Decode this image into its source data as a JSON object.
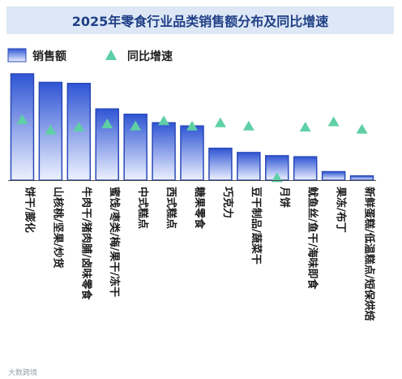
{
  "chart_data": {
    "type": "bar",
    "title": "2025年零食行业品类销售额分布及同比增速",
    "categories": [
      "饼干/膨化",
      "山核桃/坚果/炒货",
      "牛肉干/猪肉脯/卤味零食",
      "蜜饯/枣类/梅/果干/冻干",
      "中式糕点",
      "西式糕点",
      "糖果零食",
      "巧克力",
      "豆干制品/蔬菜干",
      "月饼",
      "鱿鱼丝/鱼干/海味即食",
      "果冻/布丁",
      "新鲜蛋糕/低温糕点/短保烘焙"
    ],
    "series": [
      {
        "name": "销售额",
        "type": "bar",
        "values": [
          100,
          92,
          91,
          67,
          62,
          54,
          51,
          30,
          26,
          23,
          22,
          8,
          4
        ]
      },
      {
        "name": "同比增速",
        "type": "scatter",
        "values": [
          57,
          47,
          50,
          53,
          51,
          56,
          51,
          54,
          51,
          2,
          50,
          55,
          48
        ]
      }
    ],
    "legend": {
      "position": "top-left"
    },
    "colors": {
      "bar_top": "#2f55d4",
      "bar_bottom": "#eef2ff",
      "bar_border": "#2a49b8",
      "marker": "#5fcfa6",
      "title_bg": "#dde7f5",
      "title_text": "#1f3f86"
    }
  },
  "watermark": "大数跨境"
}
